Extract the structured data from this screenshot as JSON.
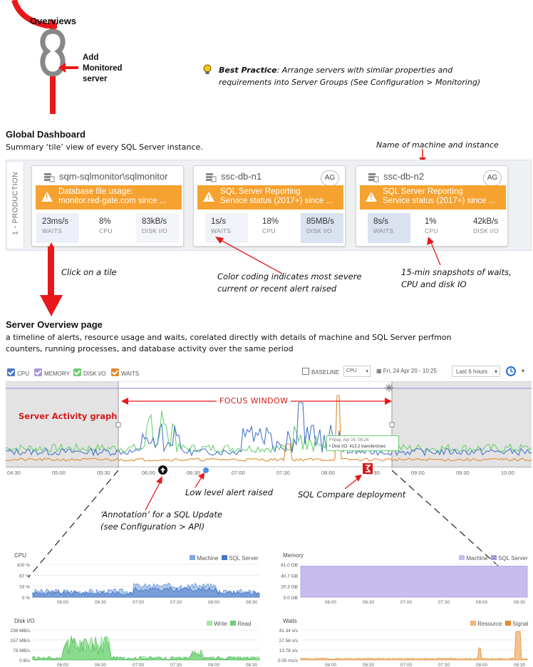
{
  "flow": {
    "overviews_label": "Overviews",
    "add_monitored_label_1": "Add",
    "add_monitored_label_2": "Monitored",
    "add_monitored_label_3": "server"
  },
  "best_practice": {
    "title": "Best Practice",
    "text_1": ": Arrange servers with similar properties and",
    "text_2": "requirements into Server Groups (See Configuration > Monitoring)"
  },
  "global_dashboard": {
    "title": "Global Dashboard",
    "subtitle": "Summary ‘tile’ view of every SQL Server instance.",
    "group_label": "1 - PRODUCTION",
    "annotation_name": "Name of machine and instance",
    "annotation_color": "Color coding indicates most severe",
    "annotation_color_2": "current or recent alert raised",
    "annotation_snapshots": "15-min snapshots of waits,",
    "annotation_snapshots_2": "CPU and disk IO",
    "click_tile": "Click on a tile",
    "tiles": [
      {
        "name": "sqm-sqlmonitor\\sqlmonitor",
        "alert_1": "Database file usage:",
        "alert_2": "monitor.red-gate.com since ...",
        "badge": "",
        "waits": "23ms/s",
        "cpu": "8%",
        "disk": "83kB/s"
      },
      {
        "name": "ssc-db-n1",
        "alert_1": "SQL Server Reporting",
        "alert_2": "Service status (2017+) since ...",
        "badge": "AG",
        "waits": "1s/s",
        "cpu": "18%",
        "disk": "85MB/s"
      },
      {
        "name": "ssc-db-n2",
        "alert_1": "SQL Server Reporting",
        "alert_2": "Service status (2017+) since ...",
        "badge": "AG",
        "waits": "8s/s",
        "cpu": "1%",
        "disk": "42kB/s"
      }
    ],
    "metric_labels": {
      "waits": "WAITS",
      "cpu": "CPU",
      "disk": "DISK I/O"
    }
  },
  "server_overview": {
    "title": "Server Overview page",
    "desc_1": "a timeline of alerts, resource usage and waits,  corelated directly with details of machine and SQL Server perfmon",
    "desc_2": "counters, running processes, and database activity over the same period",
    "toolbar": {
      "cpu": "CPU",
      "memory": "MEMORY",
      "disk": "DISK I/O",
      "waits": "WAITS",
      "baseline": "BASELINE",
      "baseline_select": "CPU",
      "date": "Fri, 24 Apr 20 - 10:25",
      "range": "Last 6 hours"
    },
    "focus_window": "FOCUS WINDOW",
    "activity_label": "Server Activity graph",
    "tooltip_1": "Friday, Apr 24, 08:24",
    "tooltip_2": "• Disk I/O: 413.2 transfers/sec",
    "x_ticks": [
      "04:30",
      "05:00",
      "05:30",
      "06:00",
      "06:30",
      "07:00",
      "07:30",
      "08:00",
      "08:30",
      "09:00",
      "09:30",
      "10:00"
    ],
    "low_alert": "Low level alert raised",
    "compare": "SQL Compare deployment",
    "annotation_1": "‘Annotation’ for a SQL Update",
    "annotation_2": "(see Configuration > API)"
  },
  "small_charts": {
    "cpu": {
      "title": "CPU",
      "legend": [
        "Machine",
        "SQL Server"
      ],
      "y": [
        "100 %",
        "67 %",
        "33 %",
        "0 %"
      ]
    },
    "memory": {
      "title": "Memory",
      "legend": [
        "Machine",
        "SQL Server"
      ],
      "y": [
        "61.0 GB",
        "40.7 GB",
        "20.3 GB",
        "0.0 GB"
      ]
    },
    "disk": {
      "title": "Disk I/O",
      "legend": [
        "Write",
        "Read"
      ],
      "y": [
        "236 MB/s",
        "157 MB/s",
        "79 MB/s",
        "0 B/s"
      ]
    },
    "waits": {
      "title": "Waits",
      "legend": [
        "Resource",
        "Signal"
      ],
      "y": [
        "41.34 s/s",
        "27.56 s/s",
        "13.78 s/s",
        "0.00 ms/s"
      ]
    },
    "x_ticks": [
      "06:00",
      "06:30",
      "07:00",
      "07:30",
      "08:00",
      "08:30"
    ]
  },
  "colors": {
    "alert": "#f6a230",
    "flow": "#e8181a",
    "cpu": "#4a78c8",
    "memory": "#a898d8",
    "disk": "#6ccf72",
    "waits": "#e08a30"
  }
}
